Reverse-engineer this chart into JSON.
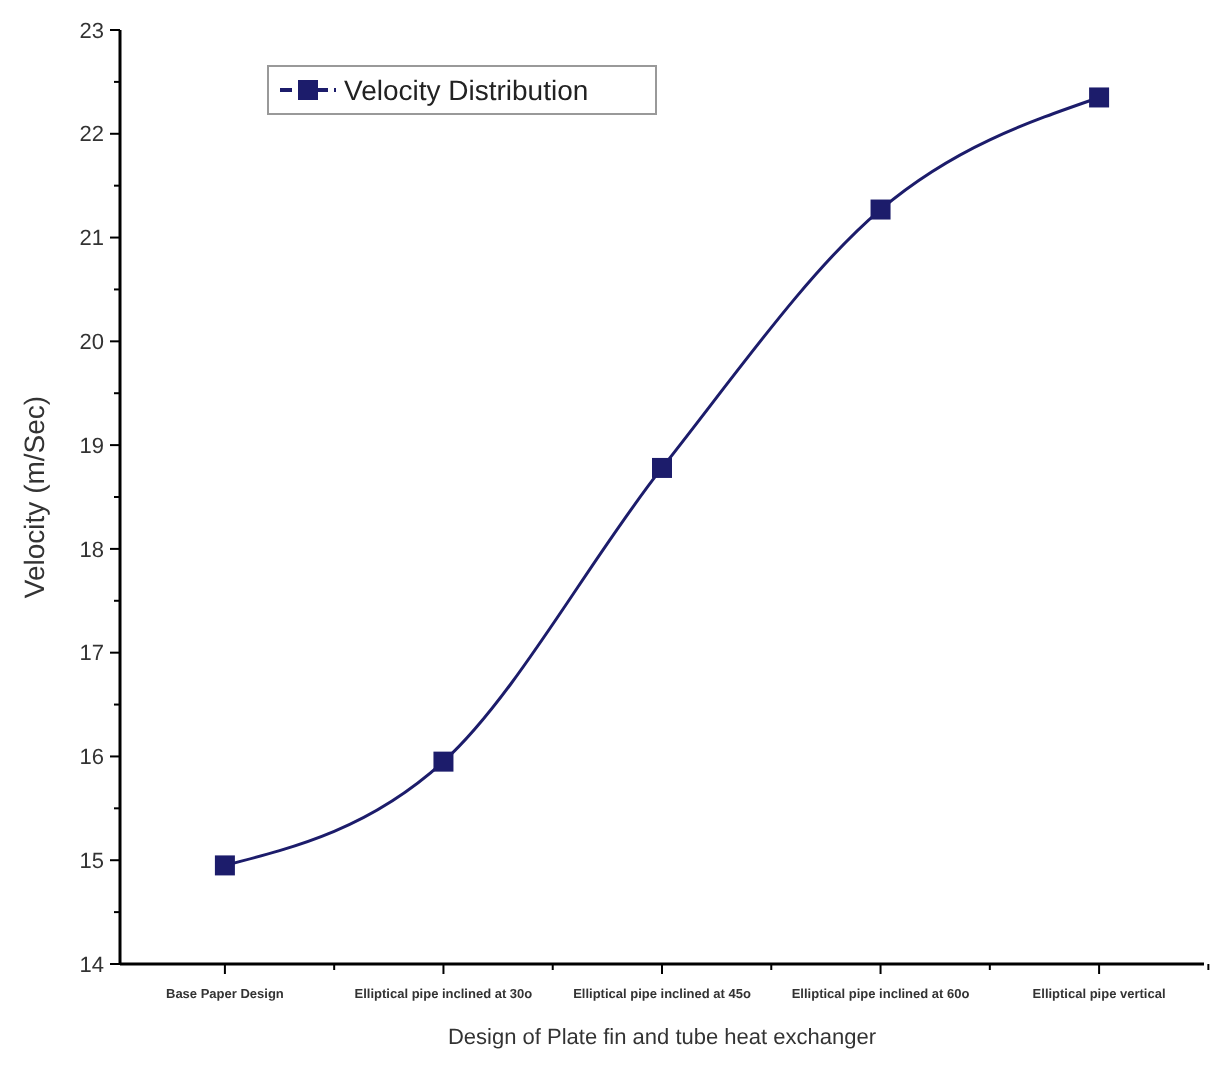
{
  "chart_data": {
    "type": "line",
    "xlabel": "Design of Plate fin and tube heat exchanger",
    "ylabel": "Velocity (m/Sec)",
    "categories": [
      "Base Paper Design",
      "Elliptical pipe inclined at 30o",
      "Elliptical pipe inclined at 45o",
      "Elliptical pipe inclined at 60o",
      "Elliptical pipe vertical"
    ],
    "series": [
      {
        "name": "Velocity Distribution",
        "color": "#1c1c6b",
        "values": [
          14.95,
          15.95,
          18.78,
          21.27,
          22.35
        ]
      }
    ],
    "ylim": [
      14,
      23
    ],
    "yticks": [
      14,
      15,
      16,
      17,
      18,
      19,
      20,
      21,
      22,
      23
    ],
    "marker": "square",
    "line_style": "solid",
    "legend": "top left",
    "grid": false
  }
}
